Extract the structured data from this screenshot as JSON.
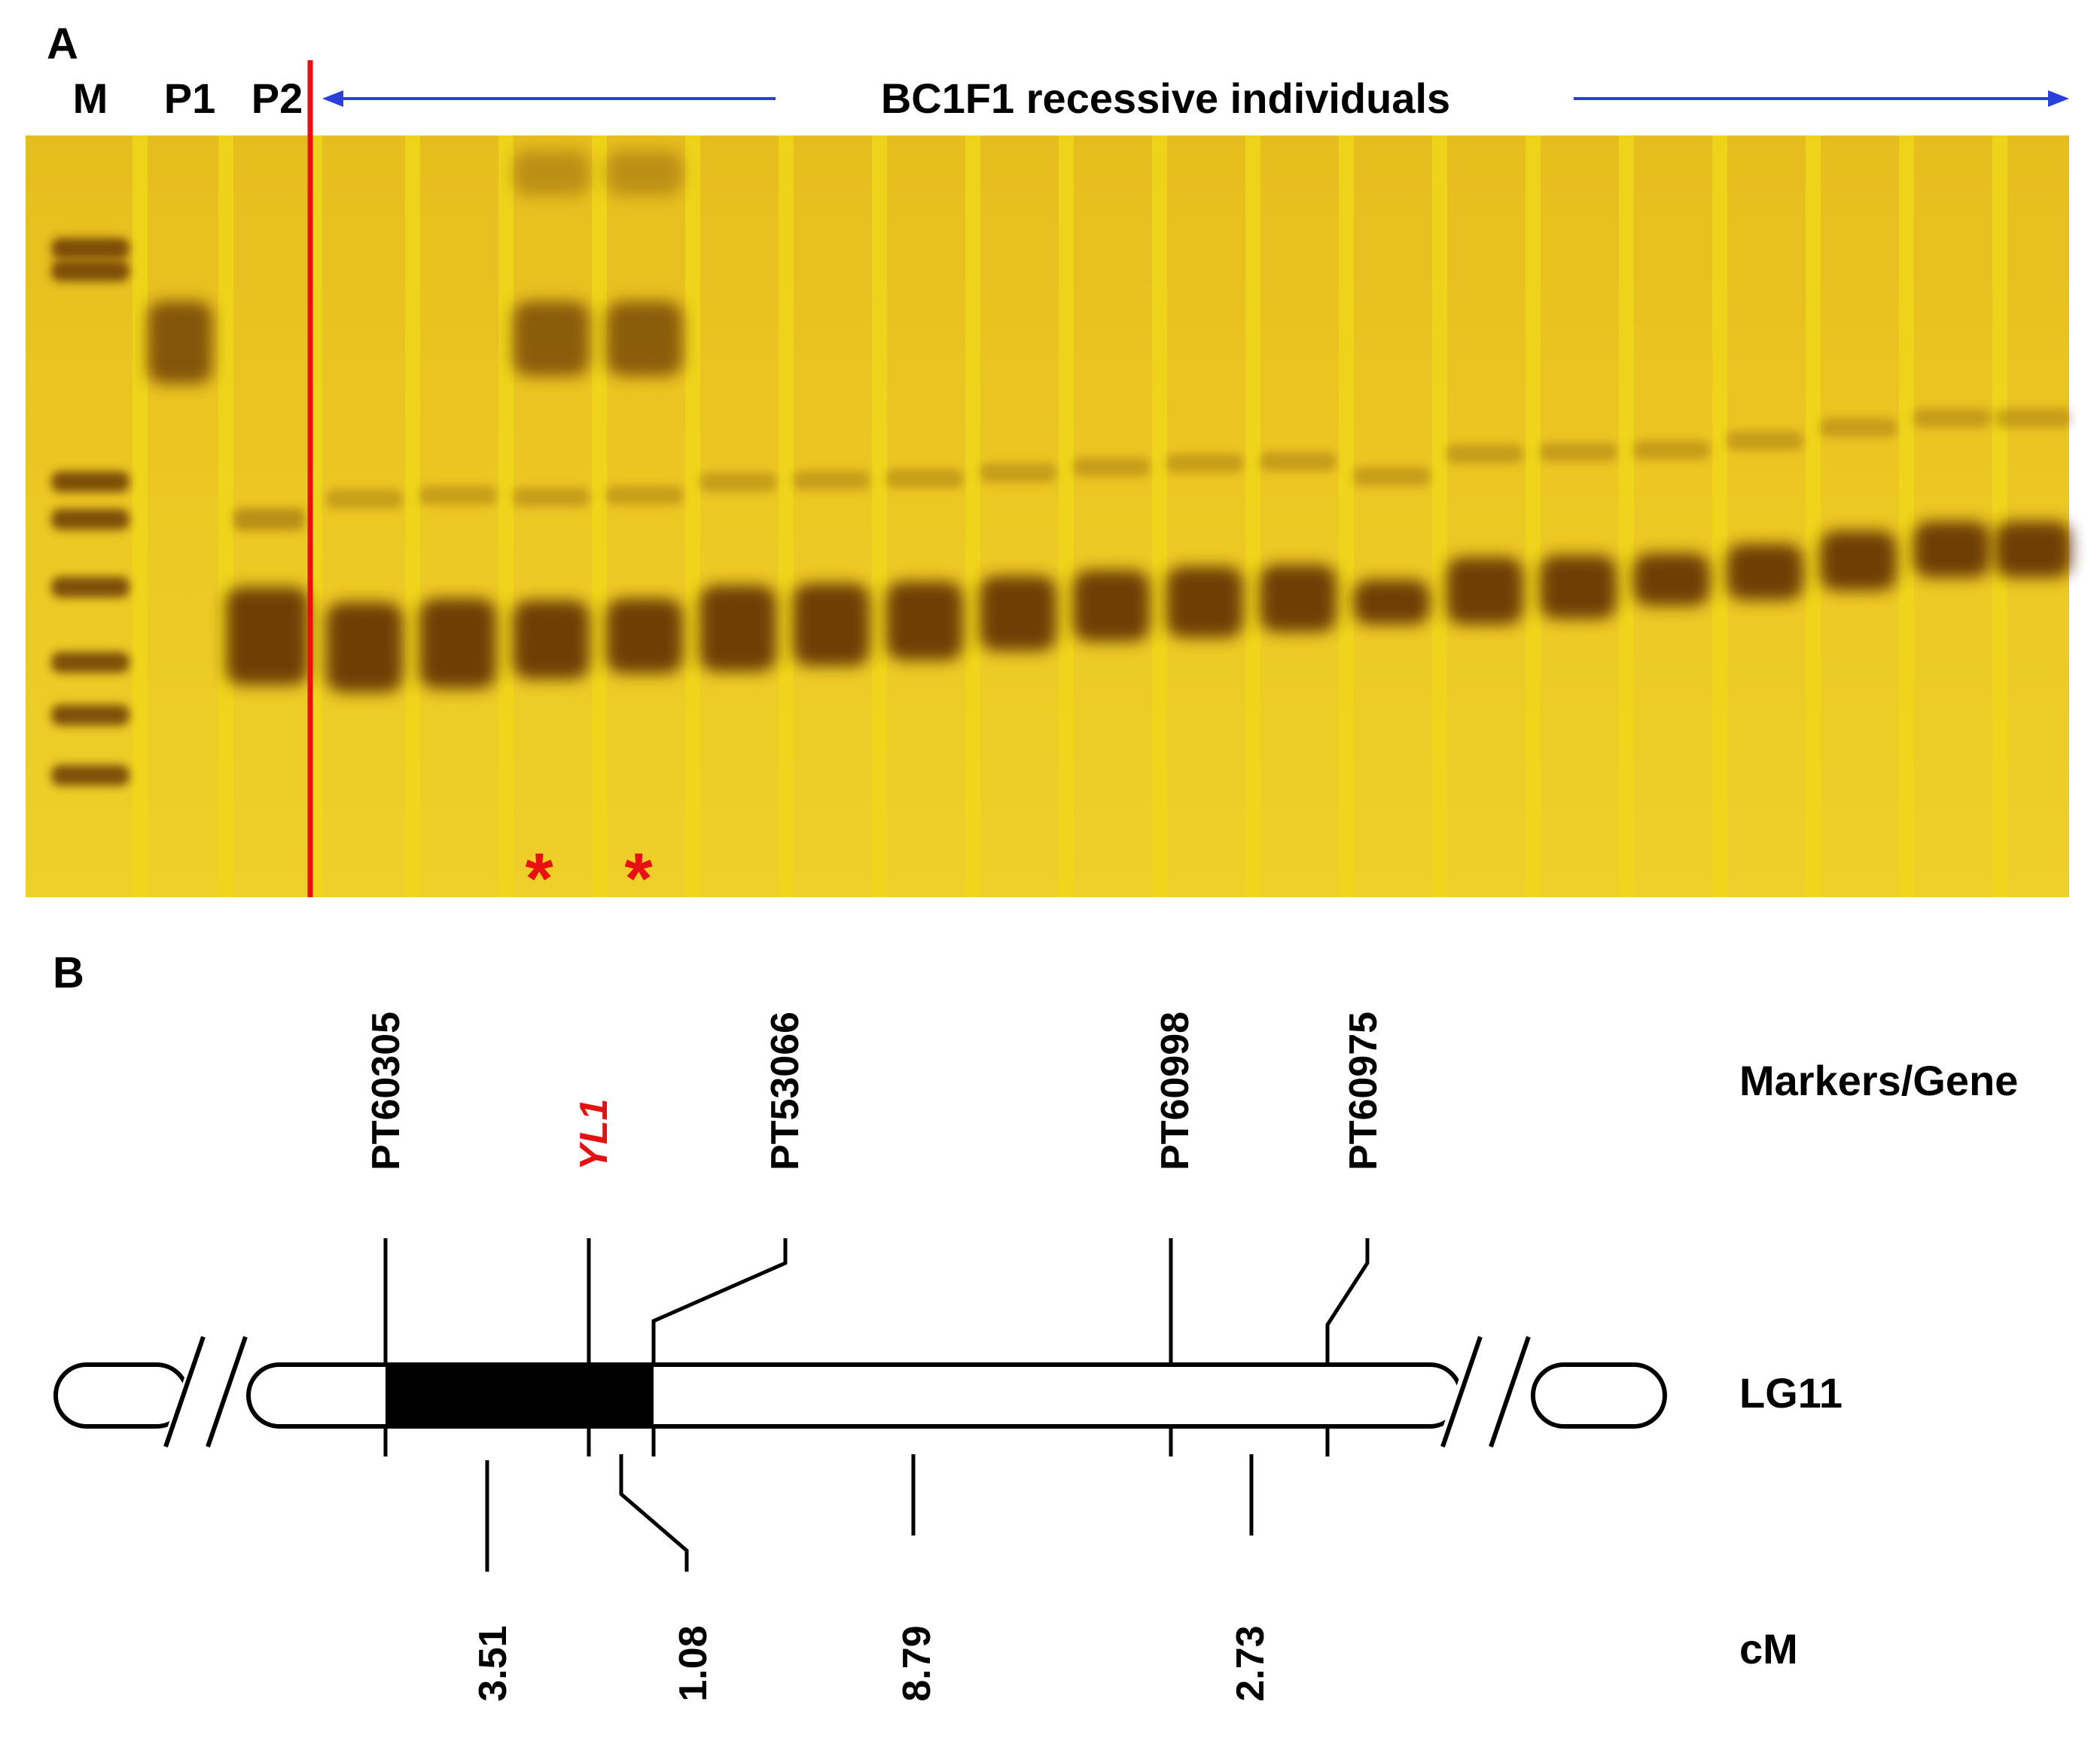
{
  "panel_a": {
    "letter": "A",
    "lanes": {
      "marker": "M",
      "parent1": "P1",
      "parent2": "P2"
    },
    "group_label": "BC1F1 recessive individuals",
    "asterisk": "*",
    "colors": {
      "gel_background": "#e8c21c",
      "lane_gap": "#f0d61a",
      "band_dark": "#5a2804",
      "divider": "#e81010",
      "arrow": "#2a3fd8",
      "asterisk": "#e81010"
    }
  },
  "panel_b": {
    "letter": "B",
    "markers": [
      "PT60305",
      "YL1",
      "PT53066",
      "PT60998",
      "PT60975"
    ],
    "highlight_marker": "YL1",
    "distances_cM": [
      "3.51",
      "1.08",
      "8.79",
      "2.73"
    ],
    "row_labels": {
      "markers": "Markers/Gene",
      "linkage_group": "LG11",
      "units": "cM"
    },
    "colors": {
      "gene_label": "#e21212",
      "highlight_segment": "#000000"
    }
  }
}
